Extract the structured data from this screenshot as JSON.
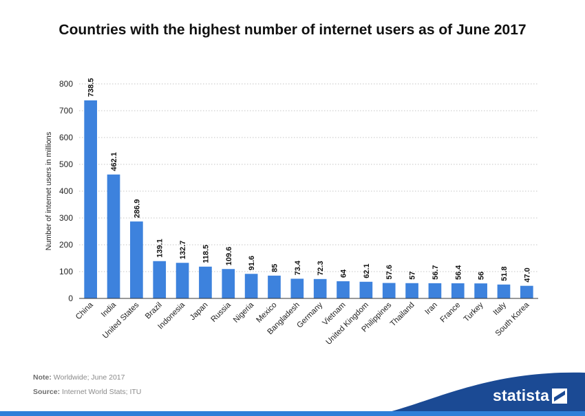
{
  "chart_data": {
    "type": "bar",
    "title": "Countries with the highest number of internet users as of June 2017",
    "ylabel": "Number of internet users in millions",
    "xlabel": "",
    "ylim": [
      0,
      800
    ],
    "yticks": [
      0,
      100,
      200,
      300,
      400,
      500,
      600,
      700,
      800
    ],
    "grid": true,
    "categories": [
      "China",
      "India",
      "United States",
      "Brazil",
      "Indonesia",
      "Japan",
      "Russia",
      "Nigeria",
      "Mexico",
      "Bangladesh",
      "Germany",
      "Vietnam",
      "United Kingdom",
      "Philippines",
      "Thailand",
      "Iran",
      "France",
      "Turkey",
      "Italy",
      "South Korea"
    ],
    "values": [
      738.5,
      462.1,
      286.9,
      139.1,
      132.7,
      118.5,
      109.6,
      91.6,
      85,
      73.4,
      72.3,
      64,
      62.1,
      57.6,
      57,
      56.7,
      56.4,
      56,
      51.8,
      47.0
    ],
    "value_labels": [
      "738.5",
      "462.1",
      "286.9",
      "139.1",
      "132.7",
      "118.5",
      "109.6",
      "91.6",
      "85",
      "73.4",
      "72.3",
      "64",
      "62.1",
      "57.6",
      "57",
      "56.7",
      "56.4",
      "56",
      "51.8",
      "47.0"
    ],
    "bar_color": "#3d82dd"
  },
  "notes": {
    "note_label": "Note:",
    "note_text": "Worldwide; June 2017",
    "source_label": "Source:",
    "source_text": "Internet World Stats; ITU"
  },
  "brand": {
    "name": "statista",
    "color": "#1b4a94",
    "accent": "#2f7fd8"
  }
}
